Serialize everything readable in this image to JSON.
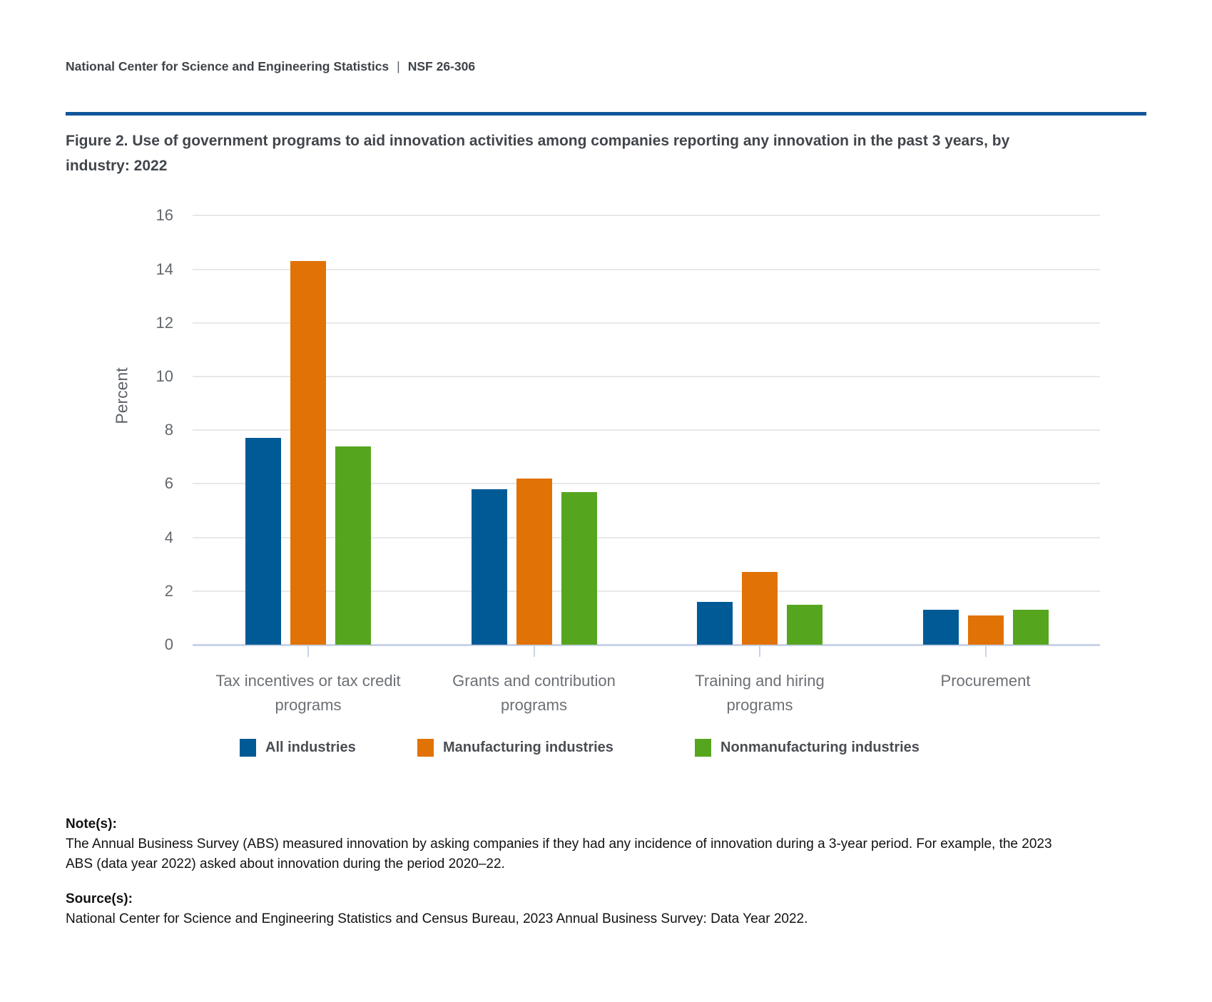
{
  "header": {
    "org": "National Center for Science and Engineering Statistics",
    "divider": "|",
    "doc_number": "NSF 26-306"
  },
  "figure_title": {
    "line1": "Figure 2. Use of government programs to aid innovation activities among companies reporting any innovation in the past 3 years, by",
    "line2": "industry: 2022"
  },
  "chart_data": {
    "type": "bar",
    "categories": [
      "Tax incentives or tax credit programs",
      "Grants and contribution programs",
      "Training and hiring programs",
      "Procurement"
    ],
    "category_label_lines": [
      [
        "Tax incentives or tax credit",
        "programs"
      ],
      [
        "Grants and contribution",
        "programs"
      ],
      [
        "Training and hiring",
        "programs"
      ],
      [
        "Procurement"
      ]
    ],
    "series": [
      {
        "name": "All industries",
        "color": "#005A96",
        "values": [
          7.7,
          5.8,
          1.6,
          1.3
        ]
      },
      {
        "name": "Manufacturing industries",
        "color": "#E17205",
        "values": [
          14.3,
          6.2,
          2.7,
          1.1
        ]
      },
      {
        "name": "Nonmanufacturing industries",
        "color": "#56A51F",
        "values": [
          7.4,
          5.7,
          1.5,
          1.3
        ]
      }
    ],
    "xlabel": "",
    "ylabel": "Percent",
    "ylim": [
      0,
      16
    ],
    "ytick_step": 2,
    "grid": true,
    "legend_position": "bottom",
    "accent_rule_color": "#11569B",
    "axis_line_color": "#C9D3E7",
    "gridline_color": "#E8E8EB"
  },
  "notes": {
    "label": "Note(s):",
    "line1": "The Annual Business Survey (ABS) measured innovation by asking companies if they had any incidence of innovation during a 3-year period. For example, the 2023",
    "line2": "ABS (data year 2022) asked about innovation during the period 2020–22."
  },
  "source": {
    "label": "Source(s):",
    "text": "National Center for Science and Engineering Statistics and Census Bureau, 2023 Annual Business Survey: Data Year 2022."
  }
}
